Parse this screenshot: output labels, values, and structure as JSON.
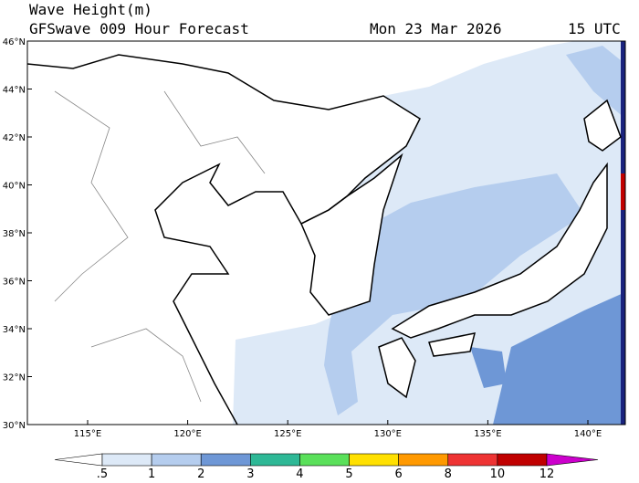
{
  "header": {
    "title": "Wave Height(m)",
    "subtitle": "GFSwave 009 Hour Forecast",
    "date": "Mon 23 Mar 2026",
    "time": "15 UTC"
  },
  "map": {
    "lat_labels": [
      "46°N",
      "44°N",
      "42°N",
      "40°N",
      "38°N",
      "36°N",
      "34°N",
      "32°N",
      "30°N"
    ],
    "lon_labels": [
      "115°E",
      "120°E",
      "125°E",
      "130°E",
      "135°E",
      "140°E"
    ]
  },
  "colorbar": {
    "labels": [
      ".5",
      "1",
      "2",
      "3",
      "4",
      "5",
      "6",
      "8",
      "10",
      "12"
    ],
    "colors": [
      "#ffffff",
      "#dde9f7",
      "#b5cdee",
      "#6e97d6",
      "#2eb896",
      "#5ae05a",
      "#ffe000",
      "#ff9900",
      "#ee3333",
      "#c00000",
      "#cc00cc"
    ]
  }
}
